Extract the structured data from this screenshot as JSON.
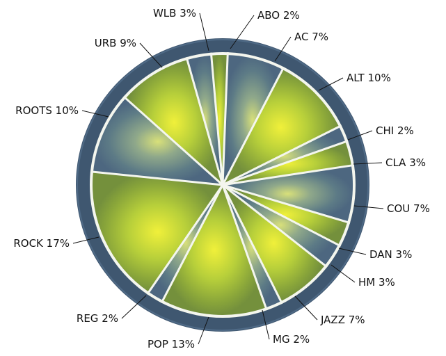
{
  "chart_data": {
    "type": "pie",
    "start_angle_deg": -5,
    "direction": "clockwise",
    "style": "radial-rays",
    "colors": {
      "ring": "#3f5770",
      "ring_edge": "#4f6a86",
      "separator": "#f4f6ee",
      "center_glow": "#f0f03a",
      "mid": "#a8c43a",
      "outer_green": "#7d9a3a",
      "slate": "#4e6a80"
    },
    "slices": [
      {
        "label": "ABO 2%",
        "value": 2,
        "tone": "green"
      },
      {
        "label": "AC 7%",
        "value": 7,
        "tone": "slate"
      },
      {
        "label": "ALT 10%",
        "value": 10,
        "tone": "green"
      },
      {
        "label": "CHI 2%",
        "value": 2,
        "tone": "slate"
      },
      {
        "label": "CLA 3%",
        "value": 3,
        "tone": "green"
      },
      {
        "label": "COU 7%",
        "value": 7,
        "tone": "slate"
      },
      {
        "label": "DAN 3%",
        "value": 3,
        "tone": "green"
      },
      {
        "label": "HM 3%",
        "value": 3,
        "tone": "slate"
      },
      {
        "label": "JAZZ 7%",
        "value": 7,
        "tone": "green"
      },
      {
        "label": "MG 2%",
        "value": 2,
        "tone": "slate"
      },
      {
        "label": "POP 13%",
        "value": 13,
        "tone": "green"
      },
      {
        "label": "REG 2%",
        "value": 2,
        "tone": "slate"
      },
      {
        "label": "ROCK 17%",
        "value": 17,
        "tone": "green"
      },
      {
        "label": "ROOTS 10%",
        "value": 10,
        "tone": "slate"
      },
      {
        "label": "URB 9%",
        "value": 9,
        "tone": "green"
      },
      {
        "label": "WLB 3%",
        "value": 3,
        "tone": "slate"
      }
    ]
  }
}
